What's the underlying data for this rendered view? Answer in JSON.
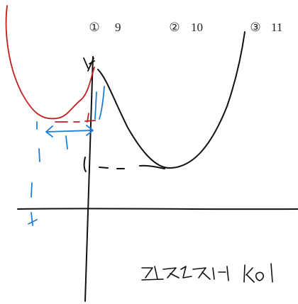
{
  "choices": [
    {
      "marker": "①",
      "value": "9"
    },
    {
      "marker": "②",
      "value": "10"
    },
    {
      "marker": "③",
      "value": "11"
    }
  ]
}
